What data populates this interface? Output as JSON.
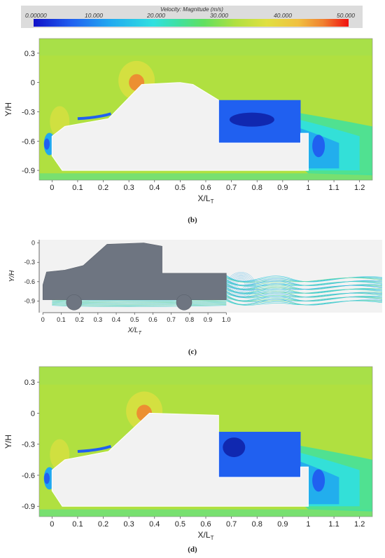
{
  "colorbar": {
    "title": "Velocity: Magnitude (m/s)",
    "ticks": [
      "0.00000",
      "10.000",
      "20.000",
      "30.000",
      "40.000",
      "50.000"
    ],
    "colors": [
      "#1010c8",
      "#2060f0",
      "#20a8f0",
      "#30e0e0",
      "#40e0a0",
      "#60e060",
      "#b0e040",
      "#e0e040",
      "#f0c040",
      "#f08030",
      "#f01010"
    ]
  },
  "captions": {
    "b": "(b)",
    "c": "(c)",
    "d": "(d)"
  },
  "chart_data": [
    {
      "type": "heatmap",
      "panel": "(b)",
      "xlabel": "X/L",
      "xlabel_sub": "T",
      "ylabel": "Y/H",
      "xlim": [
        -0.05,
        1.25
      ],
      "ylim": [
        -1.0,
        0.45
      ],
      "x_ticks": [
        "0",
        "0.1",
        "0.2",
        "0.3",
        "0.4",
        "0.5",
        "0.6",
        "0.7",
        "0.8",
        "0.9",
        "1",
        "1.1",
        "1.2"
      ],
      "y_ticks": [
        "0.3",
        "0",
        "-0.3",
        "-0.6",
        "-0.9"
      ],
      "x_tick_values": [
        0,
        0.1,
        0.2,
        0.3,
        0.4,
        0.5,
        0.6,
        0.7,
        0.8,
        0.9,
        1,
        1.1,
        1.2
      ],
      "y_tick_values": [
        0.3,
        0,
        -0.3,
        -0.6,
        -0.9
      ],
      "colorbar_range": [
        0,
        50
      ],
      "vehicle_outline": [
        [
          0.0,
          -0.55
        ],
        [
          0.0,
          -0.75
        ],
        [
          0.04,
          -0.9
        ],
        [
          1.0,
          -0.9
        ],
        [
          1.0,
          -0.52
        ],
        [
          0.97,
          -0.52
        ],
        [
          0.97,
          -0.62
        ],
        [
          0.65,
          -0.62
        ],
        [
          0.65,
          -0.18
        ],
        [
          0.55,
          -0.02
        ],
        [
          0.5,
          0.0
        ],
        [
          0.35,
          -0.02
        ],
        [
          0.22,
          -0.37
        ],
        [
          0.05,
          -0.45
        ]
      ]
    },
    {
      "type": "line",
      "panel": "(c)",
      "xlabel": "X/L",
      "xlabel_sub": "T",
      "ylabel": "Y/H",
      "xlim": [
        -0.02,
        1.85
      ],
      "ylim": [
        -1.08,
        0.05
      ],
      "x_ticks": [
        "0",
        "0.1",
        "0.2",
        "0.3",
        "0.4",
        "0.5",
        "0.6",
        "0.7",
        "0.8",
        "0.9",
        "1.0"
      ],
      "y_ticks": [
        "0",
        "-0.3",
        "-0.6",
        "-0.9"
      ],
      "x_tick_values": [
        0,
        0.1,
        0.2,
        0.3,
        0.4,
        0.5,
        0.6,
        0.7,
        0.8,
        0.9,
        1.0
      ],
      "y_tick_values": [
        0,
        -0.3,
        -0.6,
        -0.9
      ],
      "vehicle_outline": [
        [
          0.02,
          -0.45
        ],
        [
          0.0,
          -0.65
        ],
        [
          0.0,
          -0.88
        ],
        [
          1.0,
          -0.88
        ],
        [
          1.0,
          -0.47
        ],
        [
          0.65,
          -0.47
        ],
        [
          0.65,
          -0.05
        ],
        [
          0.55,
          0.0
        ],
        [
          0.35,
          -0.02
        ],
        [
          0.22,
          -0.35
        ],
        [
          0.12,
          -0.42
        ]
      ],
      "wheels": [
        [
          0.17,
          -0.92
        ],
        [
          0.77,
          -0.92
        ]
      ]
    },
    {
      "type": "heatmap",
      "panel": "(d)",
      "xlabel": "X/L",
      "xlabel_sub": "T",
      "ylabel": "Y/H",
      "xlim": [
        -0.05,
        1.25
      ],
      "ylim": [
        -1.0,
        0.45
      ],
      "x_ticks": [
        "0",
        "0.1",
        "0.2",
        "0.3",
        "0.4",
        "0.5",
        "0.6",
        "0.7",
        "0.8",
        "0.9",
        "1",
        "1.1",
        "1.2"
      ],
      "y_ticks": [
        "0.3",
        "0",
        "-0.3",
        "-0.6",
        "-0.9"
      ],
      "x_tick_values": [
        0,
        0.1,
        0.2,
        0.3,
        0.4,
        0.5,
        0.6,
        0.7,
        0.8,
        0.9,
        1,
        1.1,
        1.2
      ],
      "y_tick_values": [
        0.3,
        0,
        -0.3,
        -0.6,
        -0.9
      ],
      "colorbar_range": [
        0,
        50
      ],
      "vehicle_outline": [
        [
          0.0,
          -0.55
        ],
        [
          0.0,
          -0.75
        ],
        [
          0.04,
          -0.9
        ],
        [
          1.0,
          -0.9
        ],
        [
          1.0,
          -0.52
        ],
        [
          0.97,
          -0.52
        ],
        [
          0.97,
          -0.62
        ],
        [
          0.65,
          -0.62
        ],
        [
          0.65,
          -0.02
        ],
        [
          0.38,
          0.0
        ],
        [
          0.22,
          -0.37
        ],
        [
          0.05,
          -0.45
        ]
      ]
    }
  ]
}
